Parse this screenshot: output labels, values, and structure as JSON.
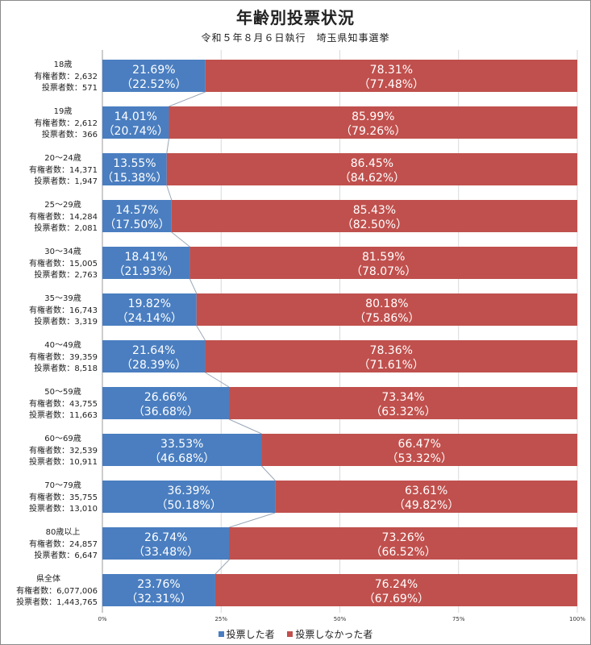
{
  "title": "年齢別投票状況",
  "subtitle": "令和５年８月６日執行　埼玉県知事選挙",
  "colors": {
    "voted": "#4a7ec0",
    "not_voted": "#c0504d",
    "connector": "#9aa7b8",
    "grid": "#d9d9d9"
  },
  "legend": {
    "voted": "投票した者",
    "not_voted": "投票しなかった者"
  },
  "chart_data": {
    "type": "bar",
    "stacked": true,
    "orientation": "horizontal",
    "title": "年齢別投票状況",
    "subtitle": "令和５年８月６日執行　埼玉県知事選挙",
    "xlim": [
      0,
      100
    ],
    "x_ticks": [
      "0%",
      "25%",
      "50%",
      "75%",
      "100%"
    ],
    "grid": true,
    "legend_position": "bottom",
    "categories": [
      "18歳",
      "19歳",
      "20～24歳",
      "25～29歳",
      "30～34歳",
      "35～39歳",
      "40～49歳",
      "50～59歳",
      "60～69歳",
      "70～79歳",
      "80歳以上",
      "県全体"
    ],
    "eligible_label": "有権者数：",
    "voters_label": "投票者数：",
    "eligible": [
      "2,632",
      "2,612",
      "14,371",
      "14,284",
      "15,005",
      "16,743",
      "39,359",
      "43,755",
      "32,539",
      "35,755",
      "24,857",
      "6,077,006"
    ],
    "voters": [
      "571",
      "366",
      "1,947",
      "2,081",
      "2,763",
      "3,319",
      "8,518",
      "11,663",
      "10,911",
      "13,010",
      "6,647",
      "1,443,765"
    ],
    "series": [
      {
        "name": "投票した者",
        "values": [
          21.69,
          14.01,
          13.55,
          14.57,
          18.41,
          19.82,
          21.64,
          26.66,
          33.53,
          36.39,
          26.74,
          23.76
        ],
        "prev": [
          "22.52",
          "20.74",
          "15.38",
          "17.50",
          "21.93",
          "24.14",
          "28.39",
          "36.68",
          "46.68",
          "50.18",
          "33.48",
          "32.31"
        ]
      },
      {
        "name": "投票しなかった者",
        "values": [
          78.31,
          85.99,
          86.45,
          85.43,
          81.59,
          80.18,
          78.36,
          73.34,
          66.47,
          63.61,
          73.26,
          76.24
        ],
        "prev": [
          "77.48",
          "79.26",
          "84.62",
          "82.50",
          "78.07",
          "75.86",
          "71.61",
          "63.32",
          "53.32",
          "49.82",
          "66.52",
          "67.69"
        ]
      }
    ]
  }
}
